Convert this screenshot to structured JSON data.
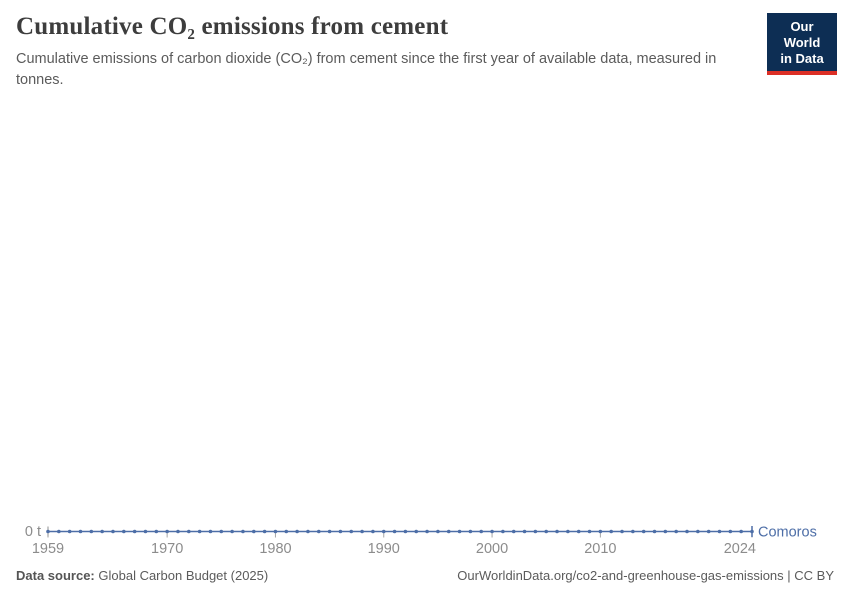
{
  "header": {
    "title": "Cumulative CO₂ emissions from cement",
    "subtitle": "Cumulative emissions of carbon dioxide (CO₂) from cement since the first year of available data, measured in tonnes."
  },
  "logo": {
    "line1": "Our World",
    "line2": "in Data",
    "bg_color": "#0d2e54",
    "stripe_color": "#dc2f26"
  },
  "chart_data": {
    "type": "line",
    "title": "Cumulative CO₂ emissions from cement",
    "xlabel": "",
    "ylabel": "",
    "unit": "t",
    "y_axis_label": "0 t",
    "x_range": [
      1959,
      2024
    ],
    "ylim": [
      0,
      0
    ],
    "grid": false,
    "legend_position": "end-of-line",
    "x_ticks": [
      1959,
      1970,
      1980,
      1990,
      2000,
      2010,
      2024
    ],
    "x": [
      1959,
      1960,
      1961,
      1962,
      1963,
      1964,
      1965,
      1966,
      1967,
      1968,
      1969,
      1970,
      1971,
      1972,
      1973,
      1974,
      1975,
      1976,
      1977,
      1978,
      1979,
      1980,
      1981,
      1982,
      1983,
      1984,
      1985,
      1986,
      1987,
      1988,
      1989,
      1990,
      1991,
      1992,
      1993,
      1994,
      1995,
      1996,
      1997,
      1998,
      1999,
      2000,
      2001,
      2002,
      2003,
      2004,
      2005,
      2006,
      2007,
      2008,
      2009,
      2010,
      2011,
      2012,
      2013,
      2014,
      2015,
      2016,
      2017,
      2018,
      2019,
      2020,
      2021,
      2022,
      2023,
      2024
    ],
    "series": [
      {
        "name": "Comoros",
        "color": "#4d6ea7",
        "values": [
          0,
          0,
          0,
          0,
          0,
          0,
          0,
          0,
          0,
          0,
          0,
          0,
          0,
          0,
          0,
          0,
          0,
          0,
          0,
          0,
          0,
          0,
          0,
          0,
          0,
          0,
          0,
          0,
          0,
          0,
          0,
          0,
          0,
          0,
          0,
          0,
          0,
          0,
          0,
          0,
          0,
          0,
          0,
          0,
          0,
          0,
          0,
          0,
          0,
          0,
          0,
          0,
          0,
          0,
          0,
          0,
          0,
          0,
          0,
          0,
          0,
          0,
          0,
          0,
          0,
          0
        ]
      }
    ],
    "colors": {
      "tick_label": "#8c8c8c",
      "axis_tick": "#a5a5a5"
    }
  },
  "footer": {
    "data_source_label": "Data source:",
    "data_source_value": "Global Carbon Budget (2025)",
    "note": "OurWorldinData.org/co2-and-greenhouse-gas-emissions | CC BY"
  }
}
